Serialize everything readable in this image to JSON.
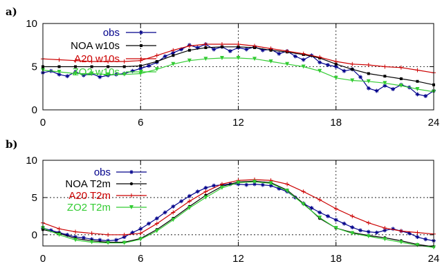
{
  "chart_data": [
    {
      "type": "line",
      "panel_label": "a)",
      "xlabel": "",
      "ylabel": "",
      "xlim": [
        0,
        24
      ],
      "ylim": [
        0,
        10
      ],
      "xticks": [
        "0",
        "6",
        "12",
        "18",
        "24"
      ],
      "yticks": [
        "0",
        "5",
        "10"
      ],
      "grid": "dotted lines at x=6,12,18 and y=5",
      "legend_position": "top-left",
      "series": [
        {
          "name": "obs",
          "color": "#00008b",
          "marker": "star",
          "x": [
            0,
            0.5,
            1,
            1.5,
            2,
            2.5,
            3,
            3.5,
            4,
            4.5,
            5,
            5.5,
            6,
            6.5,
            7,
            7.5,
            8,
            8.5,
            9,
            9.5,
            10,
            10.5,
            11,
            11.5,
            12,
            12.5,
            13,
            13.5,
            14,
            14.5,
            15,
            15.5,
            16,
            16.5,
            17,
            17.5,
            18,
            18.5,
            19,
            19.5,
            20,
            20.5,
            21,
            21.5,
            22,
            22.5,
            23,
            23.5,
            24
          ],
          "values": [
            4.3,
            4.5,
            4.1,
            3.9,
            4.4,
            4.0,
            4.2,
            3.8,
            4.0,
            4.1,
            4.2,
            4.5,
            4.8,
            5.1,
            5.5,
            6.2,
            6.6,
            7.0,
            7.5,
            7.2,
            7.6,
            7.0,
            7.3,
            6.8,
            7.2,
            7.0,
            7.3,
            6.9,
            7.0,
            6.5,
            6.8,
            6.2,
            5.8,
            6.3,
            5.5,
            5.2,
            5.0,
            4.5,
            4.7,
            3.8,
            2.5,
            2.2,
            2.8,
            2.4,
            2.9,
            2.6,
            1.8,
            1.6,
            2.2
          ]
        },
        {
          "name": "NOA w10s",
          "color": "#000000",
          "marker": "square",
          "x": [
            0,
            1,
            2,
            3,
            4,
            5,
            6,
            7,
            8,
            9,
            10,
            11,
            12,
            13,
            14,
            15,
            16,
            17,
            18,
            19,
            20,
            21,
            22,
            23,
            24
          ],
          "values": [
            5.0,
            5.0,
            5.0,
            5.0,
            5.0,
            5.0,
            5.1,
            5.6,
            6.3,
            6.9,
            7.2,
            7.3,
            7.3,
            7.2,
            6.9,
            6.7,
            6.4,
            6.0,
            5.3,
            4.7,
            4.2,
            3.9,
            3.6,
            3.3,
            2.9
          ]
        },
        {
          "name": "A20 w10s",
          "color": "#cc0000",
          "marker": "plus",
          "x": [
            0,
            1,
            2,
            3,
            4,
            5,
            6,
            7,
            8,
            9,
            10,
            11,
            12,
            13,
            14,
            15,
            16,
            17,
            18,
            19,
            20,
            21,
            22,
            23,
            24
          ],
          "values": [
            5.9,
            5.8,
            5.7,
            5.6,
            5.6,
            5.6,
            5.7,
            6.3,
            6.9,
            7.4,
            7.6,
            7.6,
            7.6,
            7.4,
            7.1,
            6.8,
            6.5,
            6.1,
            5.6,
            5.3,
            5.2,
            5.0,
            4.9,
            4.6,
            4.3
          ]
        },
        {
          "name": "ZO2 w10s",
          "color": "#33cc33",
          "marker": "triangle",
          "x": [
            0,
            1,
            2,
            3,
            4,
            5,
            6,
            7,
            8,
            9,
            10,
            11,
            12,
            13,
            14,
            15,
            16,
            17,
            18,
            19,
            20,
            21,
            22,
            23,
            24
          ],
          "values": [
            4.6,
            4.4,
            4.2,
            4.2,
            4.1,
            4.1,
            4.2,
            4.7,
            5.3,
            5.7,
            5.9,
            6.0,
            6.0,
            5.9,
            5.6,
            5.3,
            5.0,
            4.5,
            3.7,
            3.4,
            3.3,
            3.1,
            2.8,
            2.4,
            2.1
          ]
        }
      ]
    },
    {
      "type": "line",
      "panel_label": "b)",
      "xlabel": "",
      "ylabel": "",
      "xlim": [
        0,
        24
      ],
      "ylim": [
        -1.5,
        10
      ],
      "xticks": [
        "0",
        "6",
        "12",
        "18",
        "24"
      ],
      "yticks": [
        "0",
        "5",
        "10"
      ],
      "grid": "dotted lines at x=6,12,18 and y=0,5",
      "legend_position": "top-left",
      "series": [
        {
          "name": "obs",
          "color": "#00008b",
          "marker": "star",
          "x": [
            0,
            0.5,
            1,
            1.5,
            2,
            2.5,
            3,
            3.5,
            4,
            4.5,
            5,
            5.5,
            6,
            6.5,
            7,
            7.5,
            8,
            8.5,
            9,
            9.5,
            10,
            10.5,
            11,
            11.5,
            12,
            12.5,
            13,
            13.5,
            14,
            14.5,
            15,
            15.5,
            16,
            16.5,
            17,
            17.5,
            18,
            18.5,
            19,
            19.5,
            20,
            20.5,
            21,
            21.5,
            22,
            22.5,
            23,
            23.5,
            24
          ],
          "values": [
            0.9,
            0.6,
            0.3,
            0.0,
            -0.3,
            -0.4,
            -0.6,
            -0.7,
            -0.8,
            -0.7,
            -0.3,
            0.3,
            0.8,
            1.5,
            2.2,
            3.0,
            3.8,
            4.5,
            5.2,
            5.8,
            6.3,
            6.6,
            6.7,
            6.8,
            6.8,
            6.7,
            6.8,
            6.7,
            6.6,
            6.2,
            5.8,
            5.0,
            4.2,
            3.6,
            3.0,
            2.5,
            2.0,
            1.5,
            1.0,
            0.6,
            0.4,
            0.3,
            0.6,
            0.8,
            0.5,
            0.2,
            -0.3,
            -0.6,
            -0.8
          ]
        },
        {
          "name": "NOA T2m",
          "color": "#000000",
          "marker": "dot",
          "x": [
            0,
            1,
            2,
            3,
            4,
            5,
            6,
            7,
            8,
            9,
            10,
            11,
            12,
            13,
            14,
            15,
            16,
            17,
            18,
            19,
            20,
            21,
            22,
            23,
            24
          ],
          "values": [
            0.7,
            0.2,
            -0.5,
            -0.8,
            -1.0,
            -1.0,
            -0.5,
            0.7,
            2.2,
            3.8,
            5.3,
            6.5,
            7.1,
            7.2,
            7.0,
            6.0,
            4.2,
            2.2,
            0.9,
            0.3,
            -0.1,
            -0.4,
            -0.8,
            -1.3,
            -1.6
          ]
        },
        {
          "name": "A20 T2m",
          "color": "#cc0000",
          "marker": "plus",
          "x": [
            0,
            1,
            2,
            3,
            4,
            5,
            6,
            7,
            8,
            9,
            10,
            11,
            12,
            13,
            14,
            15,
            16,
            17,
            18,
            19,
            20,
            21,
            22,
            23,
            24
          ],
          "values": [
            1.6,
            0.8,
            0.4,
            0.2,
            0.0,
            0.0,
            0.2,
            1.5,
            3.0,
            4.5,
            5.8,
            6.8,
            7.3,
            7.4,
            7.3,
            6.8,
            5.8,
            4.7,
            3.5,
            2.5,
            1.6,
            0.9,
            0.5,
            0.3,
            0.1
          ]
        },
        {
          "name": "ZO2 T2m",
          "color": "#33cc33",
          "marker": "triangle",
          "x": [
            0,
            1,
            2,
            3,
            4,
            5,
            6,
            7,
            8,
            9,
            10,
            11,
            12,
            13,
            14,
            15,
            16,
            17,
            18,
            19,
            20,
            21,
            22,
            23,
            24
          ],
          "values": [
            0.9,
            0.0,
            -0.7,
            -1.0,
            -1.1,
            -1.1,
            -0.6,
            0.5,
            2.0,
            3.6,
            5.0,
            6.3,
            7.0,
            7.1,
            6.9,
            5.9,
            4.1,
            2.3,
            0.9,
            0.2,
            -0.2,
            -0.6,
            -1.0,
            -1.4,
            -1.7
          ]
        }
      ]
    }
  ]
}
